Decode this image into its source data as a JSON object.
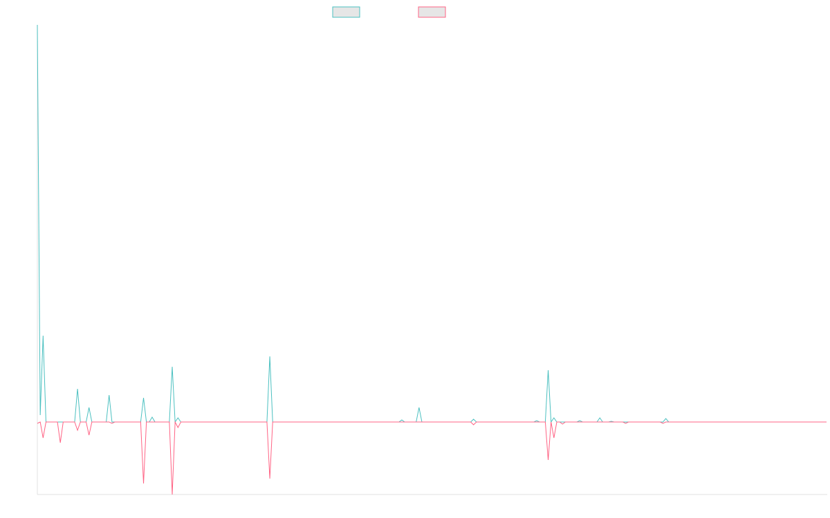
{
  "chart_data": {
    "type": "line",
    "ylim": [
      -105,
      575
    ],
    "series": [
      {
        "color": "#4bc0c0",
        "values": [
          575,
          10,
          125,
          0,
          0,
          0,
          0,
          0,
          0,
          0,
          0,
          0,
          0,
          0,
          48,
          0,
          0,
          0,
          21,
          0,
          0,
          0,
          0,
          0,
          0,
          39,
          0,
          0,
          0,
          0,
          0,
          0,
          0,
          0,
          0,
          0,
          0,
          35,
          0,
          0,
          7,
          0,
          0,
          0,
          0,
          0,
          0,
          80,
          0,
          6,
          0,
          0,
          0,
          0,
          0,
          0,
          0,
          0,
          0,
          0,
          0,
          0,
          0,
          0,
          0,
          0,
          0,
          0,
          0,
          0,
          0,
          0,
          0,
          0,
          0,
          0,
          0,
          0,
          0,
          0,
          0,
          95,
          0,
          0,
          0,
          0,
          0,
          0,
          0,
          0,
          0,
          0,
          0,
          0,
          0,
          0,
          0,
          0,
          0,
          0,
          0,
          0,
          0,
          0,
          0,
          0,
          0,
          0,
          0,
          0,
          0,
          0,
          0,
          0,
          0,
          0,
          0,
          0,
          0,
          0,
          0,
          0,
          0,
          0,
          0,
          0,
          0,
          3,
          0,
          0,
          0,
          0,
          0,
          21,
          0,
          0,
          0,
          0,
          0,
          0,
          0,
          0,
          0,
          0,
          0,
          0,
          0,
          0,
          0,
          0,
          0,
          0,
          4,
          0,
          0,
          0,
          0,
          0,
          0,
          0,
          0,
          0,
          0,
          0,
          0,
          0,
          0,
          0,
          0,
          0,
          0,
          0,
          0,
          0,
          2,
          0,
          0,
          0,
          75,
          0,
          6,
          0,
          0,
          0,
          0,
          0,
          0,
          0,
          0,
          2,
          0,
          0,
          0,
          0,
          0,
          0,
          6,
          0,
          0,
          0,
          1,
          0,
          0,
          0,
          0,
          0,
          0,
          0,
          0,
          0,
          0,
          0,
          0,
          0,
          0,
          0,
          0,
          0,
          0,
          5,
          0,
          0,
          0,
          0,
          0,
          0,
          0,
          0,
          0,
          0,
          0,
          0,
          0,
          0,
          0,
          0,
          0,
          0,
          0,
          0,
          0,
          0,
          0,
          0,
          0,
          0,
          0,
          0,
          0,
          0,
          0,
          0,
          0,
          0,
          0,
          0,
          0,
          0,
          0,
          0,
          0,
          0,
          0,
          0,
          0,
          0,
          0,
          0,
          0,
          0,
          0,
          0,
          0,
          0,
          0,
          0
        ]
      },
      {
        "color": "#ff6384",
        "values": [
          -2,
          0,
          -23,
          0,
          0,
          0,
          0,
          0,
          -30,
          0,
          0,
          0,
          0,
          0,
          -12,
          0,
          0,
          0,
          -19,
          0,
          0,
          0,
          0,
          0,
          0,
          0,
          -2,
          0,
          0,
          0,
          0,
          0,
          0,
          0,
          0,
          0,
          0,
          -89,
          0,
          0,
          0,
          0,
          0,
          0,
          0,
          0,
          0,
          -105,
          0,
          -8,
          0,
          0,
          0,
          0,
          0,
          0,
          0,
          0,
          0,
          0,
          0,
          0,
          0,
          0,
          0,
          0,
          0,
          0,
          0,
          0,
          0,
          0,
          0,
          0,
          0,
          0,
          0,
          0,
          0,
          0,
          0,
          -82,
          0,
          0,
          0,
          0,
          0,
          0,
          0,
          0,
          0,
          0,
          0,
          0,
          0,
          0,
          0,
          0,
          0,
          0,
          0,
          0,
          0,
          0,
          0,
          0,
          0,
          0,
          0,
          0,
          0,
          0,
          0,
          0,
          0,
          0,
          0,
          0,
          0,
          0,
          0,
          0,
          0,
          0,
          0,
          0,
          0,
          0,
          0,
          0,
          0,
          0,
          0,
          0,
          0,
          0,
          0,
          0,
          0,
          0,
          0,
          0,
          0,
          0,
          0,
          0,
          0,
          0,
          0,
          0,
          0,
          0,
          -4,
          0,
          0,
          0,
          0,
          0,
          0,
          0,
          0,
          0,
          0,
          0,
          0,
          0,
          0,
          0,
          0,
          0,
          0,
          0,
          0,
          0,
          0,
          0,
          0,
          0,
          -55,
          0,
          -23,
          0,
          0,
          -3,
          0,
          0,
          0,
          0,
          0,
          0,
          0,
          0,
          0,
          0,
          0,
          0,
          0,
          0,
          0,
          0,
          0,
          0,
          0,
          0,
          0,
          -2,
          0,
          0,
          0,
          0,
          0,
          0,
          0,
          0,
          0,
          0,
          0,
          0,
          -2,
          0,
          0,
          0,
          0,
          0,
          0,
          0,
          0,
          0,
          0,
          0,
          0,
          0,
          0,
          0,
          0,
          0,
          0,
          0,
          0,
          0,
          0,
          0,
          0,
          0,
          0,
          0,
          0,
          0,
          0,
          0,
          0,
          0,
          0,
          0,
          0,
          0,
          0,
          0,
          0,
          0,
          0,
          0,
          0,
          0,
          0,
          0,
          0,
          0,
          0,
          0,
          0,
          0,
          0,
          0,
          0,
          0
        ]
      }
    ]
  }
}
